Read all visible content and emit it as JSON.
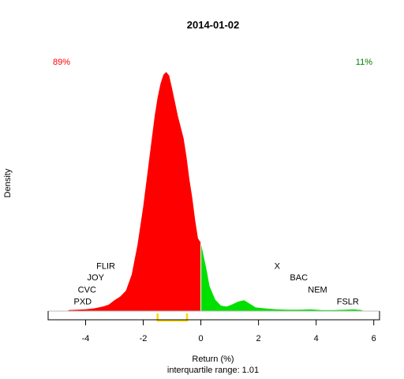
{
  "chart_data": {
    "type": "area",
    "title": "2014-01-02",
    "xlabel": "Return (%)",
    "ylabel": "Density",
    "subtitle": "interquartile range: 1.01",
    "xlim": [
      -5.3,
      6.2
    ],
    "ylim": [
      0,
      0.58
    ],
    "x_ticks": [
      -4,
      -2,
      0,
      2,
      4,
      6
    ],
    "tick_labels": [
      "-4",
      "-2",
      "0",
      "2",
      "4",
      "6"
    ],
    "split_at": 0,
    "negative_share": "89%",
    "positive_share": "11%",
    "colors": {
      "negative": "#ff0000",
      "positive": "#00e000",
      "iqr": "#ffd700",
      "negative_text": "#ff0000",
      "positive_text": "#008000"
    },
    "iqr": [
      -1.5,
      -0.48
    ],
    "density": {
      "x": [
        -4.6,
        -4.3,
        -4.0,
        -3.7,
        -3.4,
        -3.2,
        -3.0,
        -2.8,
        -2.6,
        -2.4,
        -2.2,
        -2.0,
        -1.8,
        -1.6,
        -1.5,
        -1.4,
        -1.3,
        -1.2,
        -1.1,
        -1.0,
        -0.9,
        -0.8,
        -0.6,
        -0.5,
        -0.4,
        -0.3,
        -0.2,
        -0.1,
        0.0,
        0.1,
        0.2,
        0.3,
        0.5,
        0.7,
        0.9,
        1.1,
        1.3,
        1.5,
        1.7,
        1.9,
        2.2,
        2.6,
        3.0,
        3.4,
        3.8,
        4.2,
        4.6,
        5.0,
        5.3,
        5.6
      ],
      "y": [
        0.002,
        0.003,
        0.004,
        0.006,
        0.01,
        0.014,
        0.024,
        0.032,
        0.045,
        0.08,
        0.145,
        0.23,
        0.33,
        0.43,
        0.47,
        0.5,
        0.52,
        0.526,
        0.518,
        0.49,
        0.46,
        0.43,
        0.38,
        0.34,
        0.29,
        0.25,
        0.2,
        0.16,
        0.15,
        0.12,
        0.09,
        0.055,
        0.025,
        0.012,
        0.01,
        0.015,
        0.021,
        0.024,
        0.016,
        0.008,
        0.006,
        0.004,
        0.003,
        0.003,
        0.004,
        0.002,
        0.002,
        0.003,
        0.004,
        0.002
      ]
    },
    "annotations": [
      {
        "label": "PXD",
        "x": -4.1,
        "y": 0.022
      },
      {
        "label": "CVC",
        "x": -3.95,
        "y": 0.048
      },
      {
        "label": "JOY",
        "x": -3.65,
        "y": 0.075
      },
      {
        "label": "FLIR",
        "x": -3.3,
        "y": 0.1
      },
      {
        "label": "X",
        "x": 2.65,
        "y": 0.1
      },
      {
        "label": "BAC",
        "x": 3.4,
        "y": 0.075
      },
      {
        "label": "NEM",
        "x": 4.05,
        "y": 0.048
      },
      {
        "label": "FSLR",
        "x": 5.1,
        "y": 0.022
      }
    ]
  }
}
